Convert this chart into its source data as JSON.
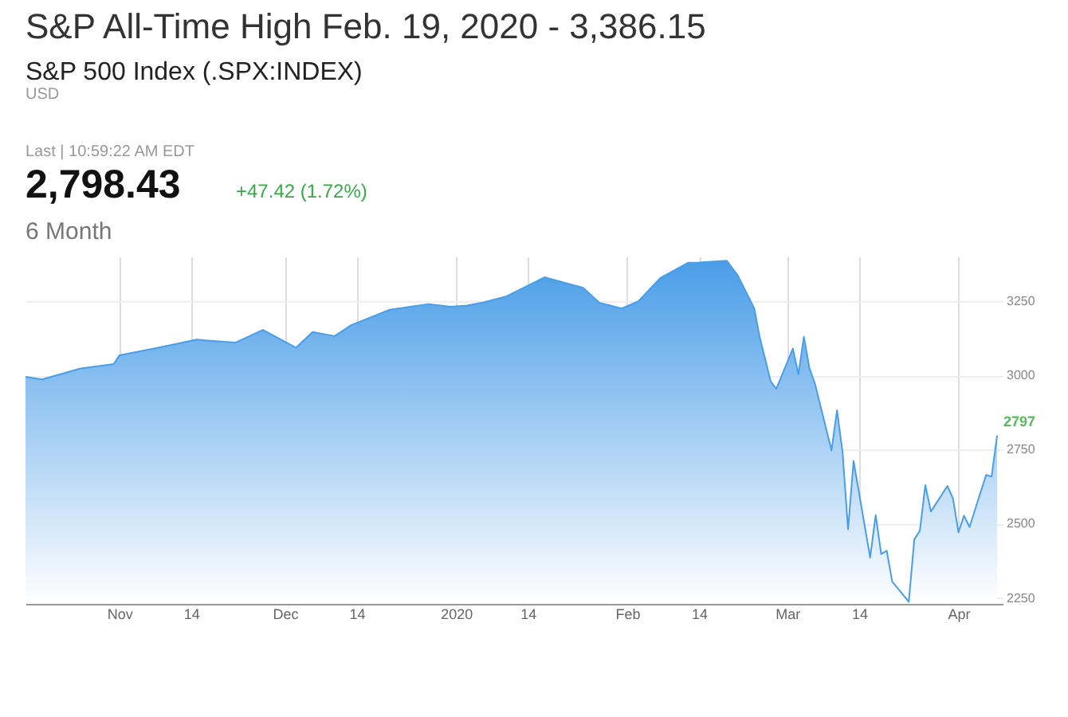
{
  "chart_data": {
    "type": "area",
    "title": "S&P All-Time High Feb. 19, 2020 - 3,386.15",
    "subtitle": "S&P 500 Index (.SPX:INDEX)",
    "annotations": [
      "USD",
      "Last | 10:59:22 AM EDT",
      "2,798.43",
      "+47.42 (1.72%)",
      "6 Month",
      {
        "text": "2797",
        "x": "2020-04-08",
        "y": 2797
      }
    ],
    "x": [
      "2019-10-15",
      "2019-10-18",
      "2019-10-25",
      "2019-10-31",
      "2019-11-01",
      "2019-11-08",
      "2019-11-15",
      "2019-11-22",
      "2019-11-27",
      "2019-12-03",
      "2019-12-06",
      "2019-12-10",
      "2019-12-13",
      "2019-12-20",
      "2019-12-27",
      "2019-12-31",
      "2020-01-03",
      "2020-01-06",
      "2020-01-10",
      "2020-01-17",
      "2020-01-24",
      "2020-01-27",
      "2020-01-31",
      "2020-02-03",
      "2020-02-07",
      "2020-02-12",
      "2020-02-14",
      "2020-02-19",
      "2020-02-21",
      "2020-02-24",
      "2020-02-25",
      "2020-02-27",
      "2020-02-28",
      "2020-03-02",
      "2020-03-03",
      "2020-03-04",
      "2020-03-05",
      "2020-03-06",
      "2020-03-09",
      "2020-03-10",
      "2020-03-11",
      "2020-03-12",
      "2020-03-13",
      "2020-03-16",
      "2020-03-17",
      "2020-03-18",
      "2020-03-19",
      "2020-03-20",
      "2020-03-23",
      "2020-03-24",
      "2020-03-25",
      "2020-03-26",
      "2020-03-27",
      "2020-03-30",
      "2020-03-31",
      "2020-04-01",
      "2020-04-02",
      "2020-04-03",
      "2020-04-06",
      "2020-04-07",
      "2020-04-08"
    ],
    "series": [
      {
        "color": "#4a9de8",
        "values": [
          2995,
          2986,
          3023,
          3038,
          3067,
          3093,
          3120,
          3110,
          3153,
          3093,
          3146,
          3132,
          3169,
          3221,
          3240,
          3231,
          3235,
          3246,
          3265,
          3330,
          3295,
          3244,
          3225,
          3249,
          3328,
          3379,
          3380,
          3386,
          3337,
          3226,
          3128,
          2979,
          2954,
          3090,
          3003,
          3130,
          3024,
          2972,
          2747,
          2882,
          2741,
          2481,
          2711,
          2386,
          2529,
          2398,
          2409,
          2305,
          2237,
          2447,
          2476,
          2630,
          2541,
          2627,
          2585,
          2471,
          2527,
          2489,
          2664,
          2659,
          2797
        ]
      }
    ],
    "xlim": [
      "2019-10-15",
      "2020-04-09"
    ],
    "xticks": [
      {
        "value": "2019-11-01",
        "label": "Nov"
      },
      {
        "value": "2019-11-14",
        "label": "14"
      },
      {
        "value": "2019-12-01",
        "label": "Dec"
      },
      {
        "value": "2019-12-14",
        "label": "14"
      },
      {
        "value": "2020-01-01",
        "label": "2020"
      },
      {
        "value": "2020-01-14",
        "label": "14"
      },
      {
        "value": "2020-02-01",
        "label": "Feb"
      },
      {
        "value": "2020-02-14",
        "label": "14"
      },
      {
        "value": "2020-03-01",
        "label": "Mar"
      },
      {
        "value": "2020-03-14",
        "label": "14"
      },
      {
        "value": "2020-04-01",
        "label": "Apr"
      }
    ],
    "ylim": [
      2230,
      3400
    ],
    "yticks": [
      2250,
      2500,
      2750,
      3000,
      3250
    ],
    "grid": true
  }
}
